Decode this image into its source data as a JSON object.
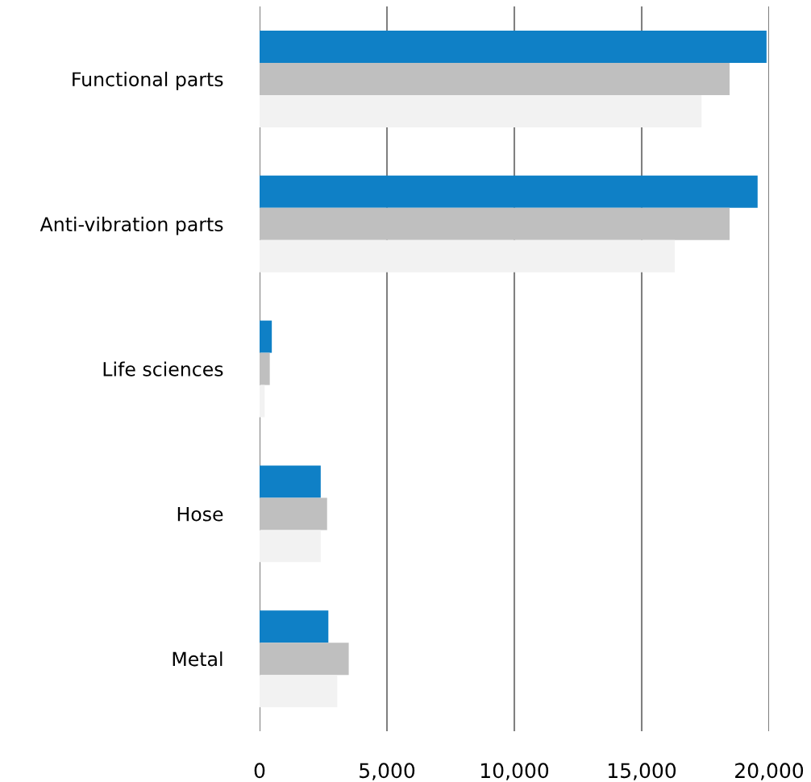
{
  "chart_data": {
    "type": "bar",
    "orientation": "horizontal",
    "categories": [
      "Functional parts",
      "Anti-vibration parts",
      "Life sciences",
      "Hose",
      "Metal"
    ],
    "series": [
      {
        "color": "#0f80c6",
        "values": [
          19900,
          19550,
          480,
          2400,
          2700
        ]
      },
      {
        "color": "#bfbfbf",
        "values": [
          18450,
          18450,
          400,
          2650,
          3500
        ]
      },
      {
        "color": "#f2f2f2",
        "values": [
          17350,
          16300,
          200,
          2400,
          3050
        ]
      }
    ],
    "xlim": [
      0,
      20000
    ],
    "xticks": [
      {
        "value": 0,
        "label": "0"
      },
      {
        "value": 5000,
        "label": "5,000"
      },
      {
        "value": 10000,
        "label": "10,000"
      },
      {
        "value": 15000,
        "label": "15,000"
      },
      {
        "value": 20000,
        "label": "20,000"
      }
    ],
    "grid": "x"
  }
}
